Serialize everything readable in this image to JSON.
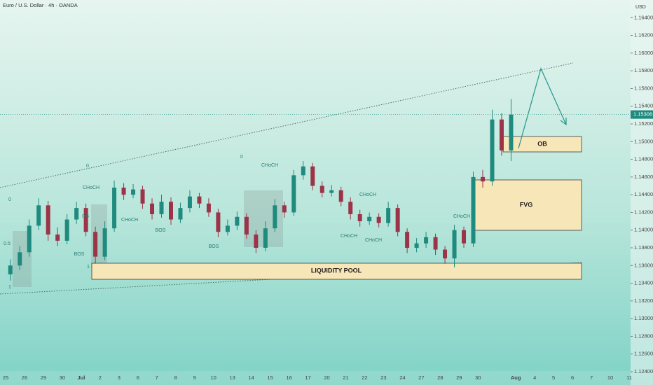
{
  "chart_data": {
    "type": "candlestick",
    "title": "Euro / U.S. Dollar · 4h · OANDA",
    "y_unit": "USD",
    "up_color": "#1f8a7e",
    "down_color": "#9b3448",
    "ylim": [
      1.1225,
      1.166
    ],
    "yticks": [
      {
        "value": 1.124,
        "label": "1.12400"
      },
      {
        "value": 1.126,
        "label": "1.12600"
      },
      {
        "value": 1.128,
        "label": "1.12800"
      },
      {
        "value": 1.13,
        "label": "1.13000"
      },
      {
        "value": 1.132,
        "label": "1.13200"
      },
      {
        "value": 1.134,
        "label": "1.13400"
      },
      {
        "value": 1.136,
        "label": "1.13600"
      },
      {
        "value": 1.138,
        "label": "1.13800"
      },
      {
        "value": 1.14,
        "label": "1.14000"
      },
      {
        "value": 1.142,
        "label": "1.14200"
      },
      {
        "value": 1.144,
        "label": "1.14400"
      },
      {
        "value": 1.146,
        "label": "1.14600"
      },
      {
        "value": 1.148,
        "label": "1.14800"
      },
      {
        "value": 1.15,
        "label": "1.15000"
      },
      {
        "value": 1.152,
        "label": "1.15200"
      },
      {
        "value": 1.154,
        "label": "1.15400"
      },
      {
        "value": 1.156,
        "label": "1.15600"
      },
      {
        "value": 1.158,
        "label": "1.15800"
      },
      {
        "value": 1.16,
        "label": "1.16000"
      },
      {
        "value": 1.162,
        "label": "1.16200"
      },
      {
        "value": 1.164,
        "label": "1.16400"
      }
    ],
    "categories": [
      "25",
      null,
      "26",
      null,
      "29",
      null,
      "30",
      null,
      "Jul",
      null,
      "2",
      null,
      "3",
      null,
      "6",
      null,
      "7",
      null,
      "8",
      null,
      "9",
      null,
      "10",
      null,
      "13",
      null,
      "14",
      null,
      "15",
      null,
      "16",
      null,
      "17",
      null,
      "20",
      null,
      "21",
      null,
      "22",
      null,
      "23",
      null,
      "24",
      null,
      "27",
      null,
      "28",
      null,
      "29",
      null,
      "30",
      null,
      null,
      null,
      "Aug",
      null,
      "4",
      null,
      "5",
      null,
      "6",
      null,
      "7",
      null,
      "10",
      null,
      "11",
      null
    ],
    "ohlc": {
      "open": [
        1.135,
        1.136,
        1.1375,
        1.1405,
        1.1428,
        1.1395,
        1.1388,
        1.1412,
        1.1425,
        1.1398,
        1.137,
        1.1402,
        1.1448,
        1.144,
        1.1446,
        1.143,
        1.1418,
        1.1432,
        1.1412,
        1.1425,
        1.1438,
        1.143,
        1.142,
        1.1398,
        1.1405,
        1.1415,
        1.1395,
        1.138,
        1.1402,
        1.1428,
        1.142,
        1.1462,
        1.1472,
        1.145,
        1.1442,
        1.1445,
        1.1432,
        1.1418,
        1.141,
        1.1415,
        1.1408,
        1.1425,
        1.1398,
        1.138,
        1.1385,
        1.1392,
        1.1378,
        1.1368,
        1.14,
        1.1385,
        1.146,
        1.1455,
        1.1525,
        1.149,
        null,
        null,
        null,
        null,
        null,
        null,
        null,
        null,
        null,
        null,
        null,
        null,
        null,
        null
      ],
      "high": [
        1.1367,
        1.1382,
        1.1412,
        1.1436,
        1.1433,
        1.1403,
        1.1418,
        1.1432,
        1.143,
        1.1404,
        1.141,
        1.1456,
        1.1453,
        1.1452,
        1.145,
        1.1436,
        1.144,
        1.1437,
        1.1431,
        1.1445,
        1.1442,
        1.1436,
        1.1424,
        1.1412,
        1.1421,
        1.1419,
        1.14,
        1.141,
        1.1435,
        1.1432,
        1.1468,
        1.1478,
        1.1476,
        1.1455,
        1.1451,
        1.1449,
        1.1437,
        1.1423,
        1.142,
        1.1419,
        1.1432,
        1.1429,
        1.1402,
        1.1391,
        1.1398,
        1.1396,
        1.1382,
        1.1406,
        1.1404,
        1.1466,
        1.1468,
        1.1536,
        1.1532,
        1.1548,
        null,
        null,
        null,
        null,
        null,
        null,
        null,
        null,
        null,
        null,
        null,
        null,
        null,
        null
      ],
      "low": [
        1.1343,
        1.1355,
        1.137,
        1.14,
        1.1388,
        1.1382,
        1.1384,
        1.1407,
        1.1393,
        1.1362,
        1.1366,
        1.1398,
        1.1434,
        1.1436,
        1.1424,
        1.1412,
        1.1414,
        1.1406,
        1.1408,
        1.142,
        1.1425,
        1.1415,
        1.1392,
        1.1394,
        1.14,
        1.139,
        1.1374,
        1.1376,
        1.1398,
        1.1414,
        1.1416,
        1.1457,
        1.1445,
        1.1437,
        1.1438,
        1.1427,
        1.1412,
        1.1404,
        1.1406,
        1.1403,
        1.1404,
        1.1393,
        1.1374,
        1.1375,
        1.138,
        1.1372,
        1.1362,
        1.1358,
        1.138,
        1.1381,
        1.1448,
        1.145,
        1.1484,
        1.1478,
        null,
        null,
        null,
        null,
        null,
        null,
        null,
        null,
        null,
        null,
        null,
        null,
        null,
        null
      ],
      "close": [
        1.136,
        1.1375,
        1.1405,
        1.1428,
        1.1395,
        1.1388,
        1.1412,
        1.1425,
        1.1398,
        1.137,
        1.1402,
        1.1448,
        1.144,
        1.1446,
        1.143,
        1.1418,
        1.1432,
        1.1412,
        1.1425,
        1.1438,
        1.143,
        1.142,
        1.1398,
        1.1405,
        1.1415,
        1.1395,
        1.138,
        1.1402,
        1.1428,
        1.142,
        1.1462,
        1.1472,
        1.145,
        1.1442,
        1.1445,
        1.1432,
        1.1418,
        1.141,
        1.1415,
        1.1408,
        1.1425,
        1.1398,
        1.138,
        1.1385,
        1.1392,
        1.1378,
        1.1368,
        1.14,
        1.1385,
        1.146,
        1.1455,
        1.1525,
        1.149,
        1.15306,
        null,
        null,
        null,
        null,
        null,
        null,
        null,
        null,
        null,
        null,
        null,
        null,
        null,
        null
      ]
    },
    "annotations": [
      "OB",
      "FVG",
      "LIQUIDITY POOL",
      "CHoCH",
      "CHoCH",
      "CHoCH",
      "CHoCH",
      "CHoCH",
      "CHoCH",
      "CHoCH",
      "BOS",
      "BOS",
      "BOS",
      "0",
      "0",
      "0",
      "0.5",
      "0.5",
      "1",
      "1"
    ]
  }
}
